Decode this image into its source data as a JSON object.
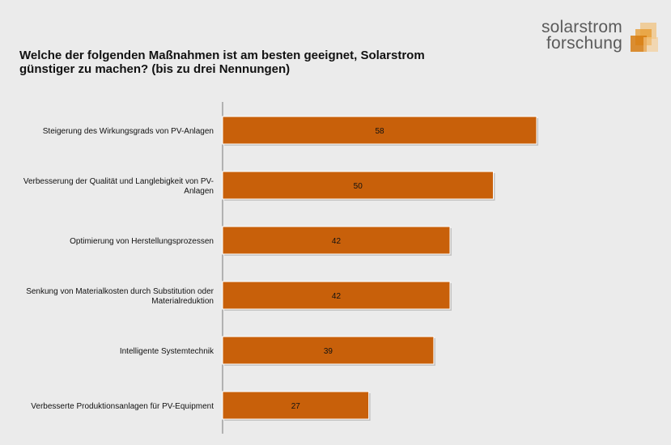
{
  "logo": {
    "line1": "solarstrom",
    "line2": "forschung"
  },
  "colors": {
    "bar": "#c8600a",
    "axis": "#7a7a7a",
    "background": "#ebebeb"
  },
  "chart_data": {
    "type": "bar",
    "orientation": "horizontal",
    "title": "Welche der folgenden Maßnahmen ist am besten geeignet, Solarstrom\ngünstiger zu machen? (bis zu drei Nennungen)",
    "xlabel": "",
    "ylabel": "",
    "xlim": [
      0,
      58
    ],
    "grid": false,
    "categories": [
      "Steigerung des Wirkungsgrads von PV-Anlagen",
      "Verbesserung der Qualität und Langlebigkeit von PV-\nAnlagen",
      "Optimierung von Herstellungsprozessen",
      "Senkung von Materialkosten durch Substitution oder\nMaterialreduktion",
      "Intelligente Systemtechnik",
      "Verbesserte Produktionsanlagen für PV-Equipment"
    ],
    "values": [
      58,
      50,
      42,
      42,
      39,
      27
    ]
  }
}
